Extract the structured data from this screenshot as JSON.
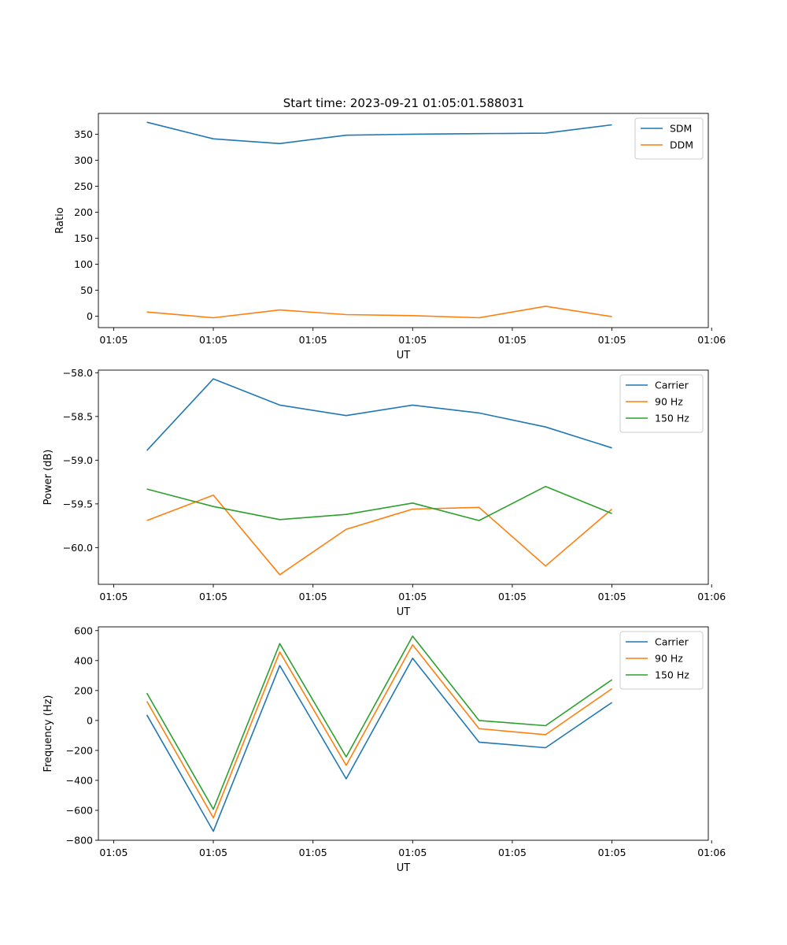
{
  "figure_title": "Start time: 2023-09-21 01:05:01.588031",
  "colors": {
    "c0": "#1f77b4",
    "c1": "#ff7f0e",
    "c2": "#2ca02c"
  },
  "chart_data": [
    {
      "type": "line",
      "title": "Start time: 2023-09-21 01:05:01.588031",
      "xlabel": "UT",
      "ylabel": "Ratio",
      "xtick_labels": [
        "01:05",
        "01:05",
        "01:05",
        "01:05",
        "01:05",
        "01:05",
        "01:06"
      ],
      "ylim": [
        -22,
        390
      ],
      "yticks": [
        0,
        50,
        100,
        150,
        200,
        250,
        300,
        350
      ],
      "ytick_labels": [
        "0",
        "50",
        "100",
        "150",
        "200",
        "250",
        "300",
        "350"
      ],
      "x": [
        1,
        2,
        3,
        4,
        5,
        6,
        7,
        8
      ],
      "xlim": [
        0.27,
        9.45
      ],
      "legend": "top-right",
      "series": [
        {
          "name": "SDM",
          "color": "#1f77b4",
          "values": [
            373,
            341,
            332,
            348,
            350,
            351,
            352,
            368
          ]
        },
        {
          "name": "DDM",
          "color": "#ff7f0e",
          "values": [
            8,
            -3,
            12,
            3,
            1,
            -3,
            19,
            -1
          ]
        }
      ]
    },
    {
      "type": "line",
      "title": "",
      "xlabel": "UT",
      "ylabel": "Power (dB)",
      "xtick_labels": [
        "01:05",
        "01:05",
        "01:05",
        "01:05",
        "01:05",
        "01:05",
        "01:06"
      ],
      "ylim": [
        -60.42,
        -57.97
      ],
      "yticks": [
        -60.0,
        -59.5,
        -59.0,
        -58.5,
        -58.0
      ],
      "ytick_labels": [
        "−60.0",
        "−59.5",
        "−59.0",
        "−58.5",
        "−58.0"
      ],
      "x": [
        1,
        2,
        3,
        4,
        5,
        6,
        7,
        8
      ],
      "xlim": [
        0.27,
        9.45
      ],
      "legend": "top-right",
      "series": [
        {
          "name": "Carrier",
          "color": "#1f77b4",
          "values": [
            -58.89,
            -58.07,
            -58.37,
            -58.49,
            -58.37,
            -58.46,
            -58.62,
            -58.86
          ]
        },
        {
          "name": "90 Hz",
          "color": "#ff7f0e",
          "values": [
            -59.69,
            -59.4,
            -60.31,
            -59.79,
            -59.56,
            -59.54,
            -60.21,
            -59.56
          ]
        },
        {
          "name": "150 Hz",
          "color": "#2ca02c",
          "values": [
            -59.33,
            -59.53,
            -59.68,
            -59.62,
            -59.49,
            -59.69,
            -59.3,
            -59.61
          ]
        }
      ]
    },
    {
      "type": "line",
      "title": "",
      "xlabel": "UT",
      "ylabel": "Frequency (Hz)",
      "xtick_labels": [
        "01:05",
        "01:05",
        "01:05",
        "01:05",
        "01:05",
        "01:05",
        "01:06"
      ],
      "ylim": [
        -800,
        625
      ],
      "yticks": [
        -800,
        -600,
        -400,
        -200,
        0,
        200,
        400,
        600
      ],
      "ytick_labels": [
        "−800",
        "−600",
        "−400",
        "−200",
        "0",
        "200",
        "400",
        "600"
      ],
      "x": [
        1,
        2,
        3,
        4,
        5,
        6,
        7,
        8
      ],
      "xlim": [
        0.27,
        9.45
      ],
      "legend": "top-right",
      "series": [
        {
          "name": "Carrier",
          "color": "#1f77b4",
          "values": [
            37,
            -740,
            367,
            -390,
            415,
            -145,
            -182,
            120
          ]
        },
        {
          "name": "90 Hz",
          "color": "#ff7f0e",
          "values": [
            128,
            -650,
            457,
            -300,
            505,
            -55,
            -95,
            212
          ]
        },
        {
          "name": "150 Hz",
          "color": "#2ca02c",
          "values": [
            183,
            -593,
            513,
            -243,
            563,
            0,
            -35,
            272
          ]
        }
      ]
    }
  ]
}
